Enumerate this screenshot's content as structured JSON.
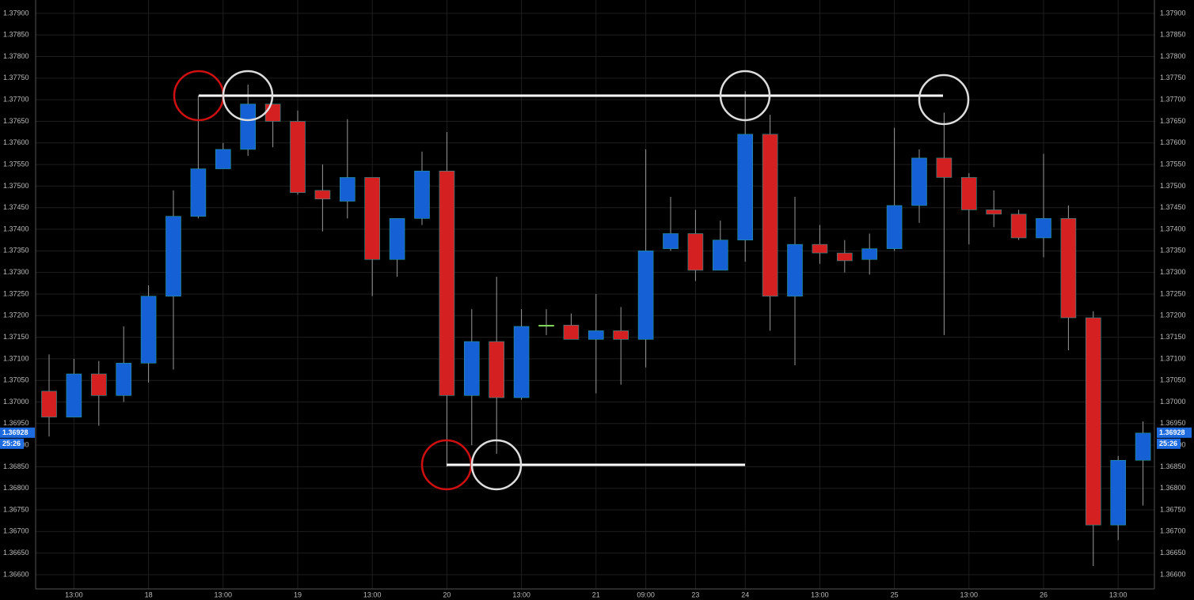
{
  "chart_data": {
    "type": "candlestick",
    "categories": [
      null,
      "13:00",
      null,
      null,
      "18",
      null,
      null,
      "13:00",
      null,
      null,
      "19",
      null,
      null,
      "13:00",
      null,
      null,
      "20",
      null,
      null,
      "13:00",
      null,
      null,
      "21",
      null,
      "09:00",
      null,
      "23",
      null,
      "24",
      null,
      null,
      "13:00",
      null,
      null,
      "25",
      null,
      null,
      "13:00",
      null,
      null,
      "26",
      null,
      null,
      "13:00",
      null
    ],
    "open": [
      1.37025,
      1.36965,
      1.37065,
      1.37015,
      1.3709,
      1.37245,
      1.3743,
      1.3754,
      1.37585,
      1.3769,
      1.3765,
      1.3749,
      1.37465,
      1.3752,
      1.3733,
      1.37425,
      1.37535,
      1.37015,
      1.3714,
      1.3701,
      1.37178,
      1.37178,
      1.37145,
      1.37165,
      1.37145,
      1.37355,
      1.3739,
      1.37305,
      1.37375,
      1.3762,
      1.37245,
      1.37365,
      1.37345,
      1.3733,
      1.37355,
      1.37455,
      1.37565,
      1.3752,
      1.37445,
      1.37435,
      1.3738,
      1.37425,
      1.37195,
      1.36715,
      1.36865
    ],
    "high": [
      1.3711,
      1.371,
      1.37095,
      1.37175,
      1.3727,
      1.3749,
      1.3771,
      1.376,
      1.37735,
      1.3769,
      1.37675,
      1.3755,
      1.37655,
      1.3752,
      1.37425,
      1.3758,
      1.37625,
      1.37215,
      1.3729,
      1.37215,
      1.37215,
      1.37205,
      1.3725,
      1.3722,
      1.37585,
      1.37475,
      1.37445,
      1.3742,
      1.3772,
      1.37665,
      1.37475,
      1.3741,
      1.37375,
      1.3739,
      1.37635,
      1.37585,
      1.3767,
      1.3753,
      1.3749,
      1.37445,
      1.37575,
      1.37455,
      1.3721,
      1.36875,
      1.36955
    ],
    "low": [
      1.3692,
      1.36965,
      1.36945,
      1.37,
      1.37045,
      1.37075,
      1.37425,
      1.3754,
      1.3757,
      1.3759,
      1.3748,
      1.37395,
      1.37425,
      1.37245,
      1.3729,
      1.3741,
      1.3685,
      1.369,
      1.3688,
      1.37005,
      1.37155,
      1.37145,
      1.3702,
      1.3704,
      1.3708,
      1.3735,
      1.3728,
      1.37305,
      1.37325,
      1.37165,
      1.37085,
      1.3732,
      1.373,
      1.37295,
      1.3735,
      1.37415,
      1.37155,
      1.37365,
      1.37405,
      1.37375,
      1.37335,
      1.3712,
      1.3662,
      1.3668,
      1.3676
    ],
    "close": [
      1.36965,
      1.37065,
      1.37015,
      1.3709,
      1.37245,
      1.3743,
      1.3754,
      1.37585,
      1.3769,
      1.3765,
      1.37485,
      1.3747,
      1.3752,
      1.3733,
      1.37425,
      1.37535,
      1.37015,
      1.3714,
      1.3701,
      1.37175,
      1.37178,
      1.37145,
      1.37165,
      1.37145,
      1.3735,
      1.3739,
      1.37305,
      1.37375,
      1.3762,
      1.37245,
      1.37365,
      1.37345,
      1.37327,
      1.37355,
      1.37455,
      1.37565,
      1.3752,
      1.37445,
      1.37435,
      1.3738,
      1.37425,
      1.37195,
      1.36715,
      1.36865,
      1.36928
    ],
    "up_color": "#1560d4",
    "down_color": "#d42020",
    "doji_color": "#7fd45a",
    "ylim": [
      1.36567,
      1.37931
    ],
    "yticks": [
      {
        "value": 1.379,
        "label": "1.37900"
      },
      {
        "value": 1.3785,
        "label": "1.37850"
      },
      {
        "value": 1.378,
        "label": "1.37800"
      },
      {
        "value": 1.3775,
        "label": "1.37750"
      },
      {
        "value": 1.377,
        "label": "1.37700"
      },
      {
        "value": 1.3765,
        "label": "1.37650"
      },
      {
        "value": 1.376,
        "label": "1.37600"
      },
      {
        "value": 1.3755,
        "label": "1.37550"
      },
      {
        "value": 1.375,
        "label": "1.37500"
      },
      {
        "value": 1.3745,
        "label": "1.37450"
      },
      {
        "value": 1.374,
        "label": "1.37400"
      },
      {
        "value": 1.3735,
        "label": "1.37350"
      },
      {
        "value": 1.373,
        "label": "1.37300"
      },
      {
        "value": 1.3725,
        "label": "1.37250"
      },
      {
        "value": 1.372,
        "label": "1.37200"
      },
      {
        "value": 1.3715,
        "label": "1.37150"
      },
      {
        "value": 1.371,
        "label": "1.37100"
      },
      {
        "value": 1.3705,
        "label": "1.37050"
      },
      {
        "value": 1.37,
        "label": "1.37000"
      },
      {
        "value": 1.3695,
        "label": "1.36950"
      },
      {
        "value": 1.369,
        "label": "1.36900"
      },
      {
        "value": 1.3685,
        "label": "1.36850"
      },
      {
        "value": 1.368,
        "label": "1.36800"
      },
      {
        "value": 1.3675,
        "label": "1.36750"
      },
      {
        "value": 1.367,
        "label": "1.36700"
      },
      {
        "value": 1.3665,
        "label": "1.36650"
      },
      {
        "value": 1.366,
        "label": "1.36600"
      }
    ],
    "last_price": {
      "value": 1.36928,
      "label": "1.36928"
    },
    "countdown": "25:26",
    "grid": true
  }
}
